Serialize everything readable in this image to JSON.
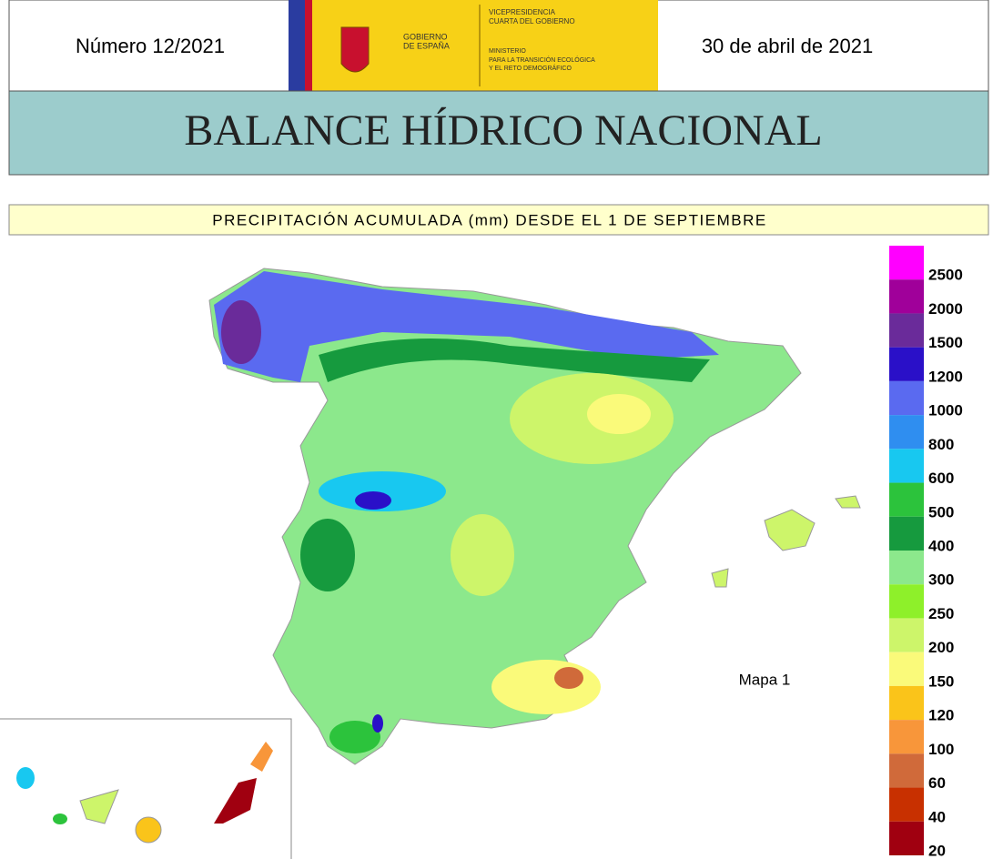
{
  "header": {
    "number": "Número 12/2021",
    "date": "30 de abril de 2021",
    "logo_left": [
      "GOBIERNO",
      "DE ESPAÑA"
    ],
    "logo_right": [
      "VICEPRESIDENCIA",
      "CUARTA DEL GOBIERNO",
      "MINISTERIO",
      "PARA LA TRANSICIÓN ECOLÓGICA",
      "Y EL RETO DEMOGRÁFICO"
    ]
  },
  "title": "BALANCE HÍDRICO NACIONAL",
  "subtitle": "PRECIPITACIÓN ACUMULADA (mm) DESDE EL 1 DE SEPTIEMBRE",
  "map_label": "Mapa 1",
  "legend": {
    "labels": [
      2500,
      2000,
      1500,
      1200,
      1000,
      800,
      600,
      500,
      400,
      300,
      250,
      200,
      150,
      120,
      100,
      60,
      40,
      20
    ],
    "colors": [
      "#ff00ff",
      "#a0009a",
      "#6a2b9a",
      "#2a10c8",
      "#5a6af0",
      "#2f8ef0",
      "#18c8f0",
      "#2cc33c",
      "#169a3e",
      "#8ce88c",
      "#8ef02a",
      "#cdf56a",
      "#fafa7a",
      "#fac41a",
      "#f8963a",
      "#d06a3a",
      "#c83000",
      "#a00010"
    ]
  }
}
